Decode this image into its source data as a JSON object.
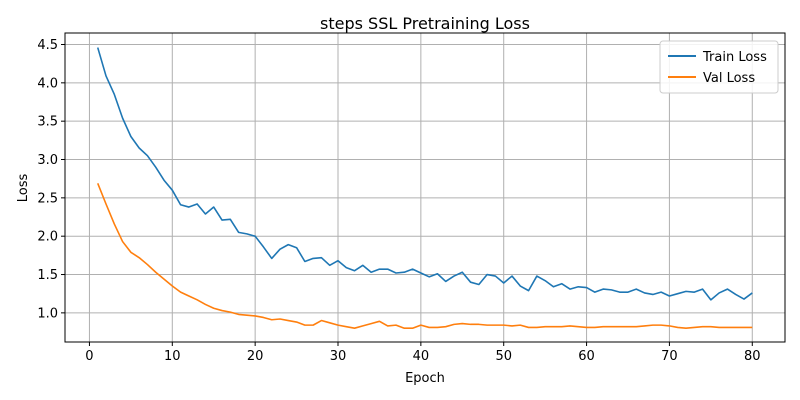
{
  "chart_data": {
    "type": "line",
    "title": "steps SSL Pretraining Loss",
    "xlabel": "Epoch",
    "ylabel": "Loss",
    "xlim": [
      -2.95,
      83.95
    ],
    "ylim": [
      0.62,
      4.65
    ],
    "xticks": [
      0,
      10,
      20,
      30,
      40,
      50,
      60,
      70,
      80
    ],
    "yticks": [
      1.0,
      1.5,
      2.0,
      2.5,
      3.0,
      3.5,
      4.0,
      4.5
    ],
    "xtick_labels": [
      "0",
      "10",
      "20",
      "30",
      "40",
      "50",
      "60",
      "70",
      "80"
    ],
    "ytick_labels": [
      "1.0",
      "1.5",
      "2.0",
      "2.5",
      "3.0",
      "3.5",
      "4.0",
      "4.5"
    ],
    "grid": true,
    "legend_position": "top-right",
    "x": [
      1,
      2,
      3,
      4,
      5,
      6,
      7,
      8,
      9,
      10,
      11,
      12,
      13,
      14,
      15,
      16,
      17,
      18,
      19,
      20,
      21,
      22,
      23,
      24,
      25,
      26,
      27,
      28,
      29,
      30,
      31,
      32,
      33,
      34,
      35,
      36,
      37,
      38,
      39,
      40,
      41,
      42,
      43,
      44,
      45,
      46,
      47,
      48,
      49,
      50,
      51,
      52,
      53,
      54,
      55,
      56,
      57,
      58,
      59,
      60,
      61,
      62,
      63,
      64,
      65,
      66,
      67,
      68,
      69,
      70,
      71,
      72,
      73,
      74,
      75,
      76,
      77,
      78,
      79,
      80
    ],
    "series": [
      {
        "name": "Train Loss",
        "color": "#1f77b4",
        "values": [
          4.46,
          4.09,
          3.85,
          3.54,
          3.3,
          3.15,
          3.05,
          2.9,
          2.73,
          2.6,
          2.41,
          2.38,
          2.42,
          2.29,
          2.38,
          2.21,
          2.22,
          2.05,
          2.03,
          2.0,
          1.86,
          1.71,
          1.83,
          1.89,
          1.85,
          1.67,
          1.71,
          1.72,
          1.62,
          1.68,
          1.59,
          1.55,
          1.62,
          1.53,
          1.57,
          1.57,
          1.52,
          1.53,
          1.57,
          1.52,
          1.47,
          1.51,
          1.41,
          1.48,
          1.53,
          1.4,
          1.37,
          1.5,
          1.48,
          1.39,
          1.48,
          1.35,
          1.29,
          1.48,
          1.42,
          1.34,
          1.38,
          1.31,
          1.34,
          1.33,
          1.27,
          1.31,
          1.3,
          1.27,
          1.27,
          1.31,
          1.26,
          1.24,
          1.27,
          1.22,
          1.25,
          1.28,
          1.27,
          1.31,
          1.17,
          1.26,
          1.31,
          1.24,
          1.18,
          1.26
        ]
      },
      {
        "name": "Val Loss",
        "color": "#ff7f0e",
        "values": [
          2.69,
          2.42,
          2.16,
          1.93,
          1.79,
          1.72,
          1.63,
          1.53,
          1.44,
          1.35,
          1.27,
          1.22,
          1.17,
          1.11,
          1.06,
          1.03,
          1.01,
          0.98,
          0.97,
          0.96,
          0.94,
          0.91,
          0.92,
          0.9,
          0.88,
          0.84,
          0.84,
          0.9,
          0.87,
          0.84,
          0.82,
          0.8,
          0.83,
          0.86,
          0.89,
          0.83,
          0.84,
          0.8,
          0.8,
          0.84,
          0.81,
          0.81,
          0.82,
          0.85,
          0.86,
          0.85,
          0.85,
          0.84,
          0.84,
          0.84,
          0.83,
          0.84,
          0.81,
          0.81,
          0.82,
          0.82,
          0.82,
          0.83,
          0.82,
          0.81,
          0.81,
          0.82,
          0.82,
          0.82,
          0.82,
          0.82,
          0.83,
          0.84,
          0.84,
          0.83,
          0.81,
          0.8,
          0.81,
          0.82,
          0.82,
          0.81,
          0.81,
          0.81,
          0.81,
          0.81
        ]
      }
    ]
  }
}
